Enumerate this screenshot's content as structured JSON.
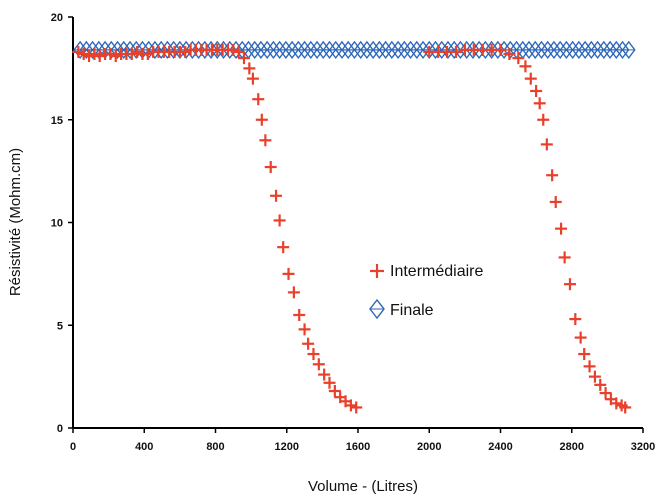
{
  "chart_data": {
    "type": "scatter",
    "xlabel": "Volume - (Litres)",
    "ylabel": "Résistivité (Mohm.cm)",
    "xlim": [
      0,
      3200
    ],
    "ylim": [
      0,
      20
    ],
    "x_ticks": [
      "0",
      "400",
      "800",
      "1200",
      "1600",
      "2000",
      "2400",
      "2800",
      "3200"
    ],
    "y_ticks": [
      "0",
      "5",
      "10",
      "15",
      "20"
    ],
    "grid": false,
    "legend_position": "center-right",
    "series": [
      {
        "name": "Intermédiaire",
        "marker": "plus",
        "color": "#e8402a",
        "points": [
          [
            30,
            18.3
          ],
          [
            60,
            18.2
          ],
          [
            90,
            18.1
          ],
          [
            120,
            18.2
          ],
          [
            150,
            18.1
          ],
          [
            180,
            18.2
          ],
          [
            210,
            18.2
          ],
          [
            240,
            18.1
          ],
          [
            270,
            18.2
          ],
          [
            300,
            18.2
          ],
          [
            330,
            18.2
          ],
          [
            360,
            18.3
          ],
          [
            390,
            18.2
          ],
          [
            420,
            18.2
          ],
          [
            450,
            18.3
          ],
          [
            480,
            18.3
          ],
          [
            510,
            18.3
          ],
          [
            540,
            18.3
          ],
          [
            570,
            18.3
          ],
          [
            600,
            18.3
          ],
          [
            630,
            18.3
          ],
          [
            660,
            18.4
          ],
          [
            690,
            18.4
          ],
          [
            720,
            18.4
          ],
          [
            750,
            18.4
          ],
          [
            780,
            18.4
          ],
          [
            810,
            18.4
          ],
          [
            840,
            18.4
          ],
          [
            870,
            18.4
          ],
          [
            900,
            18.4
          ],
          [
            930,
            18.3
          ],
          [
            960,
            18.0
          ],
          [
            990,
            17.5
          ],
          [
            1010,
            17.0
          ],
          [
            1040,
            16.0
          ],
          [
            1060,
            15.0
          ],
          [
            1080,
            14.0
          ],
          [
            1110,
            12.7
          ],
          [
            1140,
            11.3
          ],
          [
            1160,
            10.1
          ],
          [
            1180,
            8.8
          ],
          [
            1210,
            7.5
          ],
          [
            1240,
            6.6
          ],
          [
            1270,
            5.5
          ],
          [
            1300,
            4.8
          ],
          [
            1320,
            4.1
          ],
          [
            1350,
            3.6
          ],
          [
            1380,
            3.1
          ],
          [
            1410,
            2.6
          ],
          [
            1440,
            2.2
          ],
          [
            1470,
            1.8
          ],
          [
            1500,
            1.5
          ],
          [
            1530,
            1.3
          ],
          [
            1560,
            1.1
          ],
          [
            1590,
            1.0
          ],
          [
            2000,
            18.3
          ],
          [
            2050,
            18.3
          ],
          [
            2100,
            18.3
          ],
          [
            2150,
            18.3
          ],
          [
            2200,
            18.4
          ],
          [
            2250,
            18.4
          ],
          [
            2300,
            18.4
          ],
          [
            2350,
            18.4
          ],
          [
            2400,
            18.4
          ],
          [
            2450,
            18.2
          ],
          [
            2500,
            18.0
          ],
          [
            2540,
            17.6
          ],
          [
            2570,
            17.0
          ],
          [
            2600,
            16.4
          ],
          [
            2620,
            15.8
          ],
          [
            2640,
            15.0
          ],
          [
            2660,
            13.8
          ],
          [
            2690,
            12.3
          ],
          [
            2710,
            11.0
          ],
          [
            2740,
            9.7
          ],
          [
            2760,
            8.3
          ],
          [
            2790,
            7.0
          ],
          [
            2820,
            5.3
          ],
          [
            2850,
            4.4
          ],
          [
            2870,
            3.6
          ],
          [
            2900,
            3.0
          ],
          [
            2930,
            2.5
          ],
          [
            2960,
            2.1
          ],
          [
            2990,
            1.7
          ],
          [
            3020,
            1.4
          ],
          [
            3050,
            1.2
          ],
          [
            3080,
            1.1
          ],
          [
            3100,
            1.0
          ]
        ]
      },
      {
        "name": "Finale",
        "marker": "diamond",
        "color": "#2c66b8",
        "x_start": 40,
        "x_end": 3140,
        "x_step": 35,
        "y_value": 18.4
      }
    ]
  }
}
